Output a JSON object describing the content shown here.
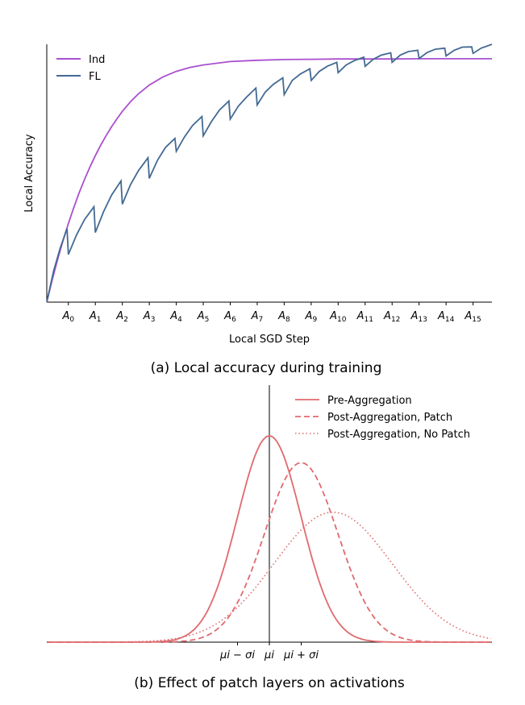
{
  "chart_data": [
    {
      "type": "line",
      "caption": "(a) Local accuracy during training",
      "xlabel": "Local SGD Step",
      "ylabel": "Local Accuracy",
      "xlim": [
        -0.8,
        15.7
      ],
      "ylim": [
        0,
        1.0
      ],
      "x_ticks": [
        {
          "base": "A",
          "sub": "0"
        },
        {
          "base": "A",
          "sub": "1"
        },
        {
          "base": "A",
          "sub": "2"
        },
        {
          "base": "A",
          "sub": "3"
        },
        {
          "base": "A",
          "sub": "4"
        },
        {
          "base": "A",
          "sub": "5"
        },
        {
          "base": "A",
          "sub": "6"
        },
        {
          "base": "A",
          "sub": "7"
        },
        {
          "base": "A",
          "sub": "8"
        },
        {
          "base": "A",
          "sub": "9"
        },
        {
          "base": "A",
          "sub": "10"
        },
        {
          "base": "A",
          "sub": "11"
        },
        {
          "base": "A",
          "sub": "12"
        },
        {
          "base": "A",
          "sub": "13"
        },
        {
          "base": "A",
          "sub": "14"
        },
        {
          "base": "A",
          "sub": "15"
        }
      ],
      "legend_position": "top-left",
      "series": [
        {
          "name": "Ind",
          "color": "#aa4fd0",
          "x": [
            -0.8,
            -0.6,
            -0.4,
            -0.2,
            0,
            0.2,
            0.4,
            0.6,
            0.8,
            1,
            1.2,
            1.4,
            1.6,
            1.8,
            2,
            2.3,
            2.6,
            3,
            3.5,
            4,
            4.5,
            5,
            6,
            7,
            8,
            9,
            10,
            11,
            12,
            13,
            14,
            15,
            15.7
          ],
          "y": [
            0.0,
            0.086,
            0.165,
            0.238,
            0.305,
            0.367,
            0.424,
            0.476,
            0.524,
            0.568,
            0.609,
            0.646,
            0.68,
            0.711,
            0.74,
            0.777,
            0.808,
            0.842,
            0.873,
            0.895,
            0.91,
            0.92,
            0.933,
            0.938,
            0.941,
            0.942,
            0.943,
            0.943,
            0.943,
            0.944,
            0.944,
            0.944,
            0.944
          ]
        },
        {
          "name": "FL",
          "color": "#436a93",
          "x": [
            -0.8,
            -0.55,
            -0.3,
            -0.05,
            0,
            0.3,
            0.6,
            0.95,
            1,
            1.3,
            1.6,
            1.95,
            2,
            2.3,
            2.6,
            2.95,
            3,
            3.3,
            3.6,
            3.95,
            4,
            4.3,
            4.6,
            4.95,
            5,
            5.3,
            5.6,
            5.95,
            6,
            6.3,
            6.6,
            6.95,
            7,
            7.3,
            7.6,
            7.95,
            8,
            8.3,
            8.6,
            8.95,
            9,
            9.3,
            9.6,
            9.95,
            10,
            10.3,
            10.6,
            10.95,
            11,
            11.3,
            11.6,
            11.95,
            12,
            12.3,
            12.6,
            12.95,
            13,
            13.3,
            13.6,
            13.95,
            14,
            14.3,
            14.6,
            14.95,
            15,
            15.3,
            15.7
          ],
          "y": [
            0.0,
            0.12,
            0.21,
            0.285,
            0.185,
            0.26,
            0.32,
            0.37,
            0.27,
            0.35,
            0.415,
            0.47,
            0.38,
            0.455,
            0.51,
            0.56,
            0.48,
            0.55,
            0.6,
            0.635,
            0.585,
            0.64,
            0.685,
            0.72,
            0.645,
            0.7,
            0.745,
            0.78,
            0.71,
            0.76,
            0.795,
            0.83,
            0.765,
            0.815,
            0.845,
            0.87,
            0.805,
            0.86,
            0.885,
            0.905,
            0.86,
            0.895,
            0.915,
            0.93,
            0.89,
            0.92,
            0.937,
            0.95,
            0.915,
            0.942,
            0.958,
            0.967,
            0.93,
            0.958,
            0.972,
            0.977,
            0.945,
            0.968,
            0.981,
            0.985,
            0.955,
            0.977,
            0.989,
            0.99,
            0.965,
            0.985,
            1.0
          ]
        }
      ]
    },
    {
      "type": "line",
      "caption": "(b) Effect of patch layers on activations",
      "x_tick_labels": [
        "μi − σi",
        "μi",
        "μi + σi"
      ],
      "legend_position": "top-right",
      "series": [
        {
          "name": "Pre-Aggregation",
          "color": "#e06a6e",
          "style": "solid",
          "mean": 0.0,
          "sd": 1.0,
          "peak": 1.0
        },
        {
          "name": "Post-Aggregation, Patch",
          "color": "#e06a6e",
          "style": "dashed",
          "mean": 1.0,
          "sd": 1.15,
          "peak": 0.87
        },
        {
          "name": "Post-Aggregation, No Patch",
          "color": "#e06a6e",
          "style": "dotted",
          "mean": 2.0,
          "sd": 1.85,
          "peak": 0.63
        }
      ],
      "xlim": [
        -7.0,
        7.0
      ],
      "ylim": [
        0,
        1.0
      ]
    }
  ]
}
